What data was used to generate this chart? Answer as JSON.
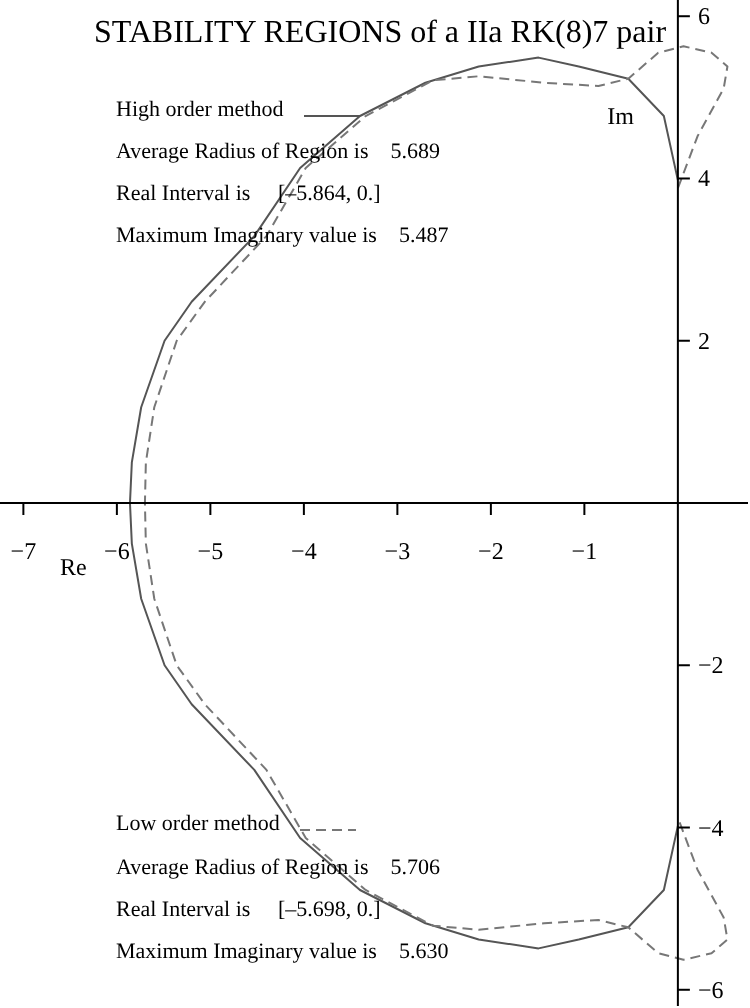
{
  "chart_data": {
    "type": "line",
    "title": "STABILITY REGIONS  of a IIa RK(8)7 pair",
    "xlabel": "Re",
    "ylabel": "Im",
    "xlim": [
      -7.25,
      0.75
    ],
    "ylim": [
      -6.2,
      6.2
    ],
    "xticks": [
      -7,
      -6,
      -5,
      -4,
      -3,
      -2,
      -1
    ],
    "yticks": [
      -6,
      -4,
      -2,
      2,
      4,
      6
    ],
    "marker": "none",
    "legend": "top left",
    "annotations": [
      "Average Radius of Region is    5.689",
      "Real Interval is     [–5.864, 0.]",
      "Maximum Imaginary value is    5.487",
      "Average Radius of Region is    5.706",
      "Real Interval is     [–5.698, 0.]",
      "Maximum Imaginary value is    5.630"
    ],
    "series": [
      {
        "name": "High order method",
        "color": "#555555",
        "line_style": "solid",
        "x": [
          0,
          -0.15,
          -0.53,
          -1.06,
          -1.49,
          -2.13,
          -2.7,
          -3.4,
          -4.04,
          -4.53,
          -5.2,
          -5.49,
          -5.74,
          -5.84,
          -5.86,
          -5.84,
          -5.74,
          -5.49,
          -5.2,
          -4.53,
          -4.04,
          -3.4,
          -2.7,
          -2.13,
          -1.49,
          -1.06,
          -0.53,
          -0.15,
          0
        ],
        "values": [
          3.98,
          4.77,
          5.23,
          5.38,
          5.49,
          5.38,
          5.18,
          4.77,
          4.13,
          3.29,
          2.48,
          2.0,
          1.18,
          0.5,
          0,
          -0.5,
          -1.18,
          -2.0,
          -2.48,
          -3.29,
          -4.13,
          -4.77,
          -5.18,
          -5.38,
          -5.49,
          -5.38,
          -5.23,
          -4.77,
          -3.98
        ]
      },
      {
        "name": "Low order method",
        "color": "#777777",
        "line_style": "dashed",
        "x": [
          0,
          0.21,
          0.49,
          0.53,
          0.36,
          0.06,
          -0.21,
          -0.53,
          -0.85,
          -1.43,
          -2.13,
          -2.62,
          -3.34,
          -3.98,
          -4.4,
          -5.06,
          -5.36,
          -5.6,
          -5.69,
          -5.7,
          -5.69,
          -5.6,
          -5.36,
          -5.06,
          -4.4,
          -3.98,
          -3.34,
          -2.62,
          -2.13,
          -1.43,
          -0.85,
          -0.53,
          -0.21,
          0.06,
          0.36,
          0.53,
          0.49,
          0.21,
          0
        ],
        "values": [
          3.88,
          4.52,
          5.11,
          5.38,
          5.55,
          5.63,
          5.55,
          5.23,
          5.14,
          5.18,
          5.26,
          5.21,
          4.77,
          4.13,
          3.29,
          2.48,
          2.0,
          1.18,
          0.5,
          0,
          -0.5,
          -1.18,
          -2.0,
          -2.48,
          -3.29,
          -4.13,
          -4.77,
          -5.21,
          -5.26,
          -5.18,
          -5.14,
          -5.23,
          -5.55,
          -5.63,
          -5.55,
          -5.38,
          -5.11,
          -4.52,
          -3.88
        ]
      }
    ]
  }
}
